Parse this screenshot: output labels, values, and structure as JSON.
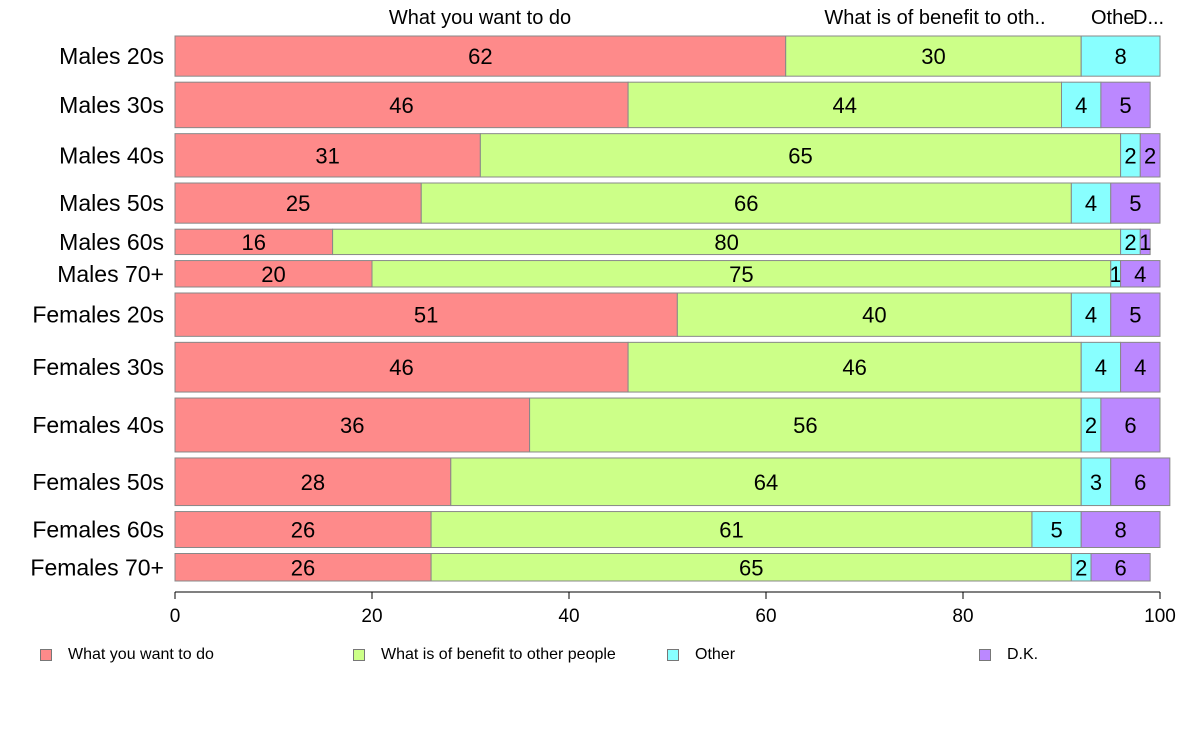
{
  "chart_data": {
    "type": "bar",
    "orientation": "horizontal",
    "stacked": true,
    "categories": [
      "Males 20s",
      "Males 30s",
      "Males 40s",
      "Males 50s",
      "Males 60s",
      "Males 70+",
      "Females 20s",
      "Females 30s",
      "Females 40s",
      "Females 50s",
      "Females 60s",
      "Females 70+"
    ],
    "series": [
      {
        "name": "What you want to do",
        "color": "#fe8a8a",
        "values": [
          62,
          46,
          31,
          25,
          16,
          20,
          51,
          46,
          36,
          28,
          26,
          26
        ]
      },
      {
        "name": "What is of benefit to other people",
        "color": "#ccff88",
        "values": [
          30,
          44,
          65,
          66,
          80,
          75,
          40,
          46,
          56,
          64,
          61,
          65
        ]
      },
      {
        "name": "Other",
        "color": "#88ffff",
        "values": [
          8,
          4,
          2,
          4,
          2,
          1,
          4,
          4,
          2,
          3,
          5,
          2
        ]
      },
      {
        "name": "D.K.",
        "color": "#bb88ff",
        "values": [
          0,
          5,
          2,
          5,
          1,
          4,
          5,
          4,
          6,
          6,
          8,
          6
        ]
      }
    ],
    "top_labels": [
      "What you want to do",
      "What is of benefit to oth..",
      "Othe",
      "D..."
    ],
    "xlim": [
      0,
      100
    ],
    "xticks": [
      0,
      20,
      40,
      60,
      80,
      100
    ],
    "grid": false,
    "legend_position": "bottom"
  }
}
